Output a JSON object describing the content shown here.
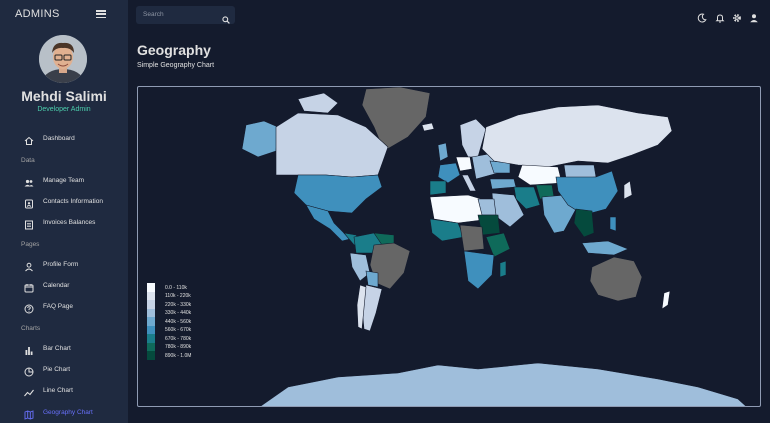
{
  "app": {
    "brand": "ADMINS"
  },
  "user": {
    "name": "Mehdi Salimi",
    "role": "Developer Admin"
  },
  "nav": {
    "dashboard": "Dashboard",
    "sections": {
      "data": "Data",
      "pages": "Pages",
      "charts": "Charts"
    },
    "data_items": [
      "Manage Team",
      "Contacts Information",
      "Invoices Balances"
    ],
    "pages_items": [
      "Profile Form",
      "Calendar",
      "FAQ Page"
    ],
    "charts_items": [
      "Bar Chart",
      "Pie Chart",
      "Line Chart",
      "Geography Chart"
    ],
    "active": "Geography Chart"
  },
  "search": {
    "placeholder": "Search"
  },
  "header": {
    "title": "Geography",
    "subtitle": "Simple Geography Chart"
  },
  "colors": {
    "background": "#141b2d",
    "panel": "#1f2a40",
    "accent_green": "#4cceac",
    "active_nav": "#6870fa",
    "no_data": "#666666"
  },
  "chart_data": {
    "type": "choropleth",
    "legend_placement": "bottom-left",
    "legend": [
      {
        "label": "0.0 - 110k",
        "color": "#f7fbff"
      },
      {
        "label": "110k - 220k",
        "color": "#dce3ee"
      },
      {
        "label": "220k - 330k",
        "color": "#c6d3e6"
      },
      {
        "label": "330k - 440k",
        "color": "#9fbedb"
      },
      {
        "label": "440k - 560k",
        "color": "#6ea9cf"
      },
      {
        "label": "560k - 670k",
        "color": "#3f90bd"
      },
      {
        "label": "670k - 780k",
        "color": "#1a7d8a"
      },
      {
        "label": "780k - 890k",
        "color": "#0f6a5a"
      },
      {
        "label": "890k - 1.0M",
        "color": "#054a3d"
      }
    ]
  }
}
